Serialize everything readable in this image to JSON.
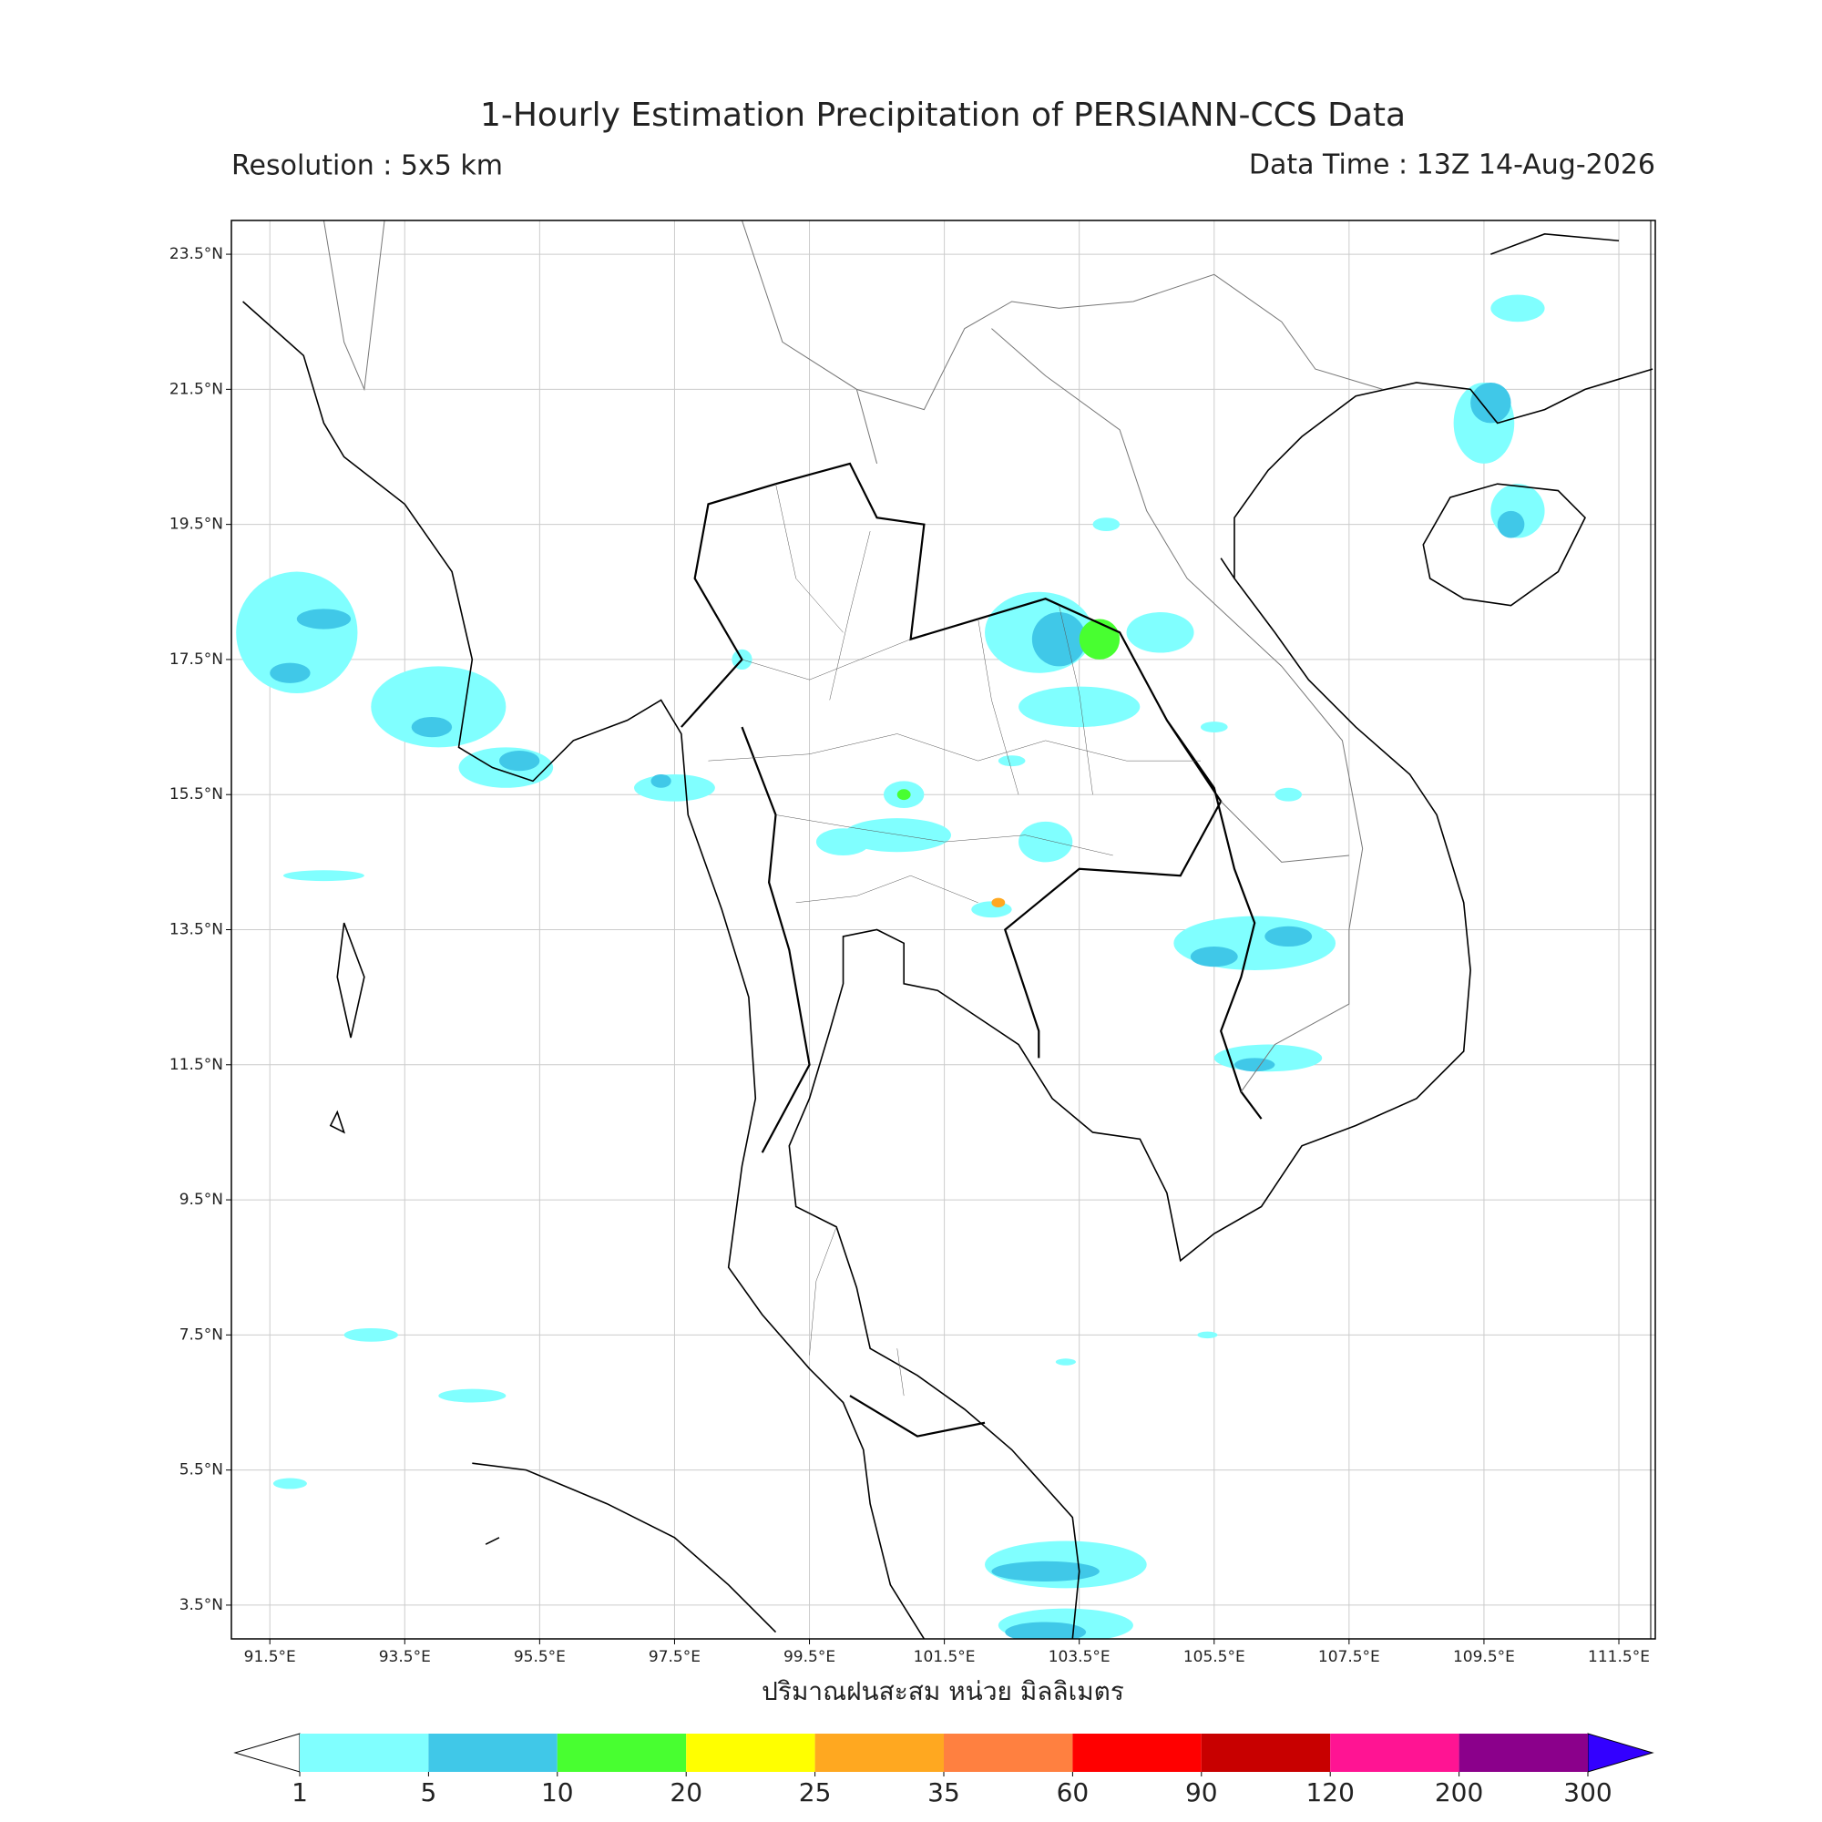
{
  "header": {
    "title": "1-Hourly Estimation Precipitation of PERSIANN-CCS Data",
    "resolution": "Resolution : 5x5 km",
    "data_time": "Data Time : 13Z 14-Aug-2026"
  },
  "map": {
    "lon_range": [
      90.93,
      112.04
    ],
    "lat_range": [
      3.0,
      24.0
    ],
    "lon_ticks": [
      {
        "value": 91.5,
        "label": "91.5°E"
      },
      {
        "value": 93.5,
        "label": "93.5°E"
      },
      {
        "value": 95.5,
        "label": "95.5°E"
      },
      {
        "value": 97.5,
        "label": "97.5°E"
      },
      {
        "value": 99.5,
        "label": "99.5°E"
      },
      {
        "value": 101.5,
        "label": "101.5°E"
      },
      {
        "value": 103.5,
        "label": "103.5°E"
      },
      {
        "value": 105.5,
        "label": "105.5°E"
      },
      {
        "value": 107.5,
        "label": "107.5°E"
      },
      {
        "value": 109.5,
        "label": "109.5°E"
      },
      {
        "value": 111.5,
        "label": "111.5°E"
      }
    ],
    "lat_ticks": [
      {
        "value": 23.5,
        "label": "23.5°N"
      },
      {
        "value": 21.5,
        "label": "21.5°N"
      },
      {
        "value": 19.5,
        "label": "19.5°N"
      },
      {
        "value": 17.5,
        "label": "17.5°N"
      },
      {
        "value": 15.5,
        "label": "15.5°N"
      },
      {
        "value": 13.5,
        "label": "13.5°N"
      },
      {
        "value": 11.5,
        "label": "11.5°N"
      },
      {
        "value": 9.5,
        "label": "9.5°N"
      },
      {
        "value": 7.5,
        "label": "7.5°N"
      },
      {
        "value": 5.5,
        "label": "5.5°N"
      },
      {
        "value": 3.5,
        "label": "3.5°N"
      }
    ],
    "axis_label": "ปริมาณฝนสะสม หน่วย มิลลิเมตร"
  },
  "colorbar": {
    "levels": [
      1,
      5,
      10,
      20,
      25,
      35,
      60,
      90,
      120,
      200,
      300
    ],
    "colors": [
      "#80ffff",
      "#40c8e8",
      "#48ff30",
      "#ffff00",
      "#ffa820",
      "#ff8040",
      "#ff0000",
      "#c80000",
      "#ff1493",
      "#8b008b"
    ],
    "under_color": "#ffffff",
    "over_color": "#3300ff"
  }
}
